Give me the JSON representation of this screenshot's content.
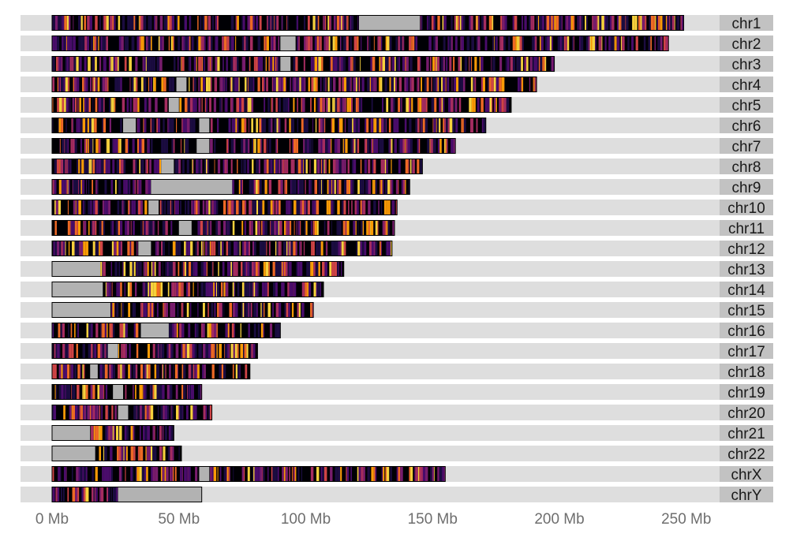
{
  "chart_data": {
    "type": "ideogram",
    "title": "",
    "xlabel": "",
    "ylabel": "",
    "x_unit": "Mb",
    "xlim": [
      -12,
      278
    ],
    "x_ticks": [
      {
        "value": 0,
        "label": "0 Mb"
      },
      {
        "value": 50,
        "label": "50 Mb"
      },
      {
        "value": 100,
        "label": "100 Mb"
      },
      {
        "value": 150,
        "label": "150 Mb"
      },
      {
        "value": 200,
        "label": "200 Mb"
      },
      {
        "value": 250,
        "label": "250 Mb"
      }
    ],
    "colors": {
      "panel_background": "#dedede",
      "strip_background": "#c2c2c2",
      "gap_region": "#b2b2b2",
      "bar_outline": "#000000",
      "band_palette": [
        "#000004",
        "#1b0c41",
        "#4a0c6b",
        "#781c6d",
        "#a52c60",
        "#cf4446",
        "#ed6925",
        "#fb9b06",
        "#f7d13d"
      ]
    },
    "chromosomes": [
      {
        "name": "chr1",
        "length": 249,
        "gaps": [
          [
            121,
            145
          ]
        ]
      },
      {
        "name": "chr2",
        "length": 243,
        "gaps": [
          [
            90,
            96
          ]
        ]
      },
      {
        "name": "chr3",
        "length": 198,
        "gaps": [
          [
            90,
            94
          ]
        ]
      },
      {
        "name": "chr4",
        "length": 191,
        "gaps": [
          [
            49,
            53
          ]
        ]
      },
      {
        "name": "chr5",
        "length": 181,
        "gaps": [
          [
            46,
            50
          ]
        ]
      },
      {
        "name": "chr6",
        "length": 171,
        "gaps": [
          [
            28,
            33
          ],
          [
            58,
            62
          ]
        ]
      },
      {
        "name": "chr7",
        "length": 159,
        "gaps": [
          [
            57,
            62
          ]
        ]
      },
      {
        "name": "chr8",
        "length": 146,
        "gaps": [
          [
            43,
            48
          ]
        ]
      },
      {
        "name": "chr9",
        "length": 141,
        "gaps": [
          [
            39,
            71
          ]
        ]
      },
      {
        "name": "chr10",
        "length": 136,
        "gaps": [
          [
            38,
            42
          ]
        ]
      },
      {
        "name": "chr11",
        "length": 135,
        "gaps": [
          [
            50,
            55
          ]
        ]
      },
      {
        "name": "chr12",
        "length": 134,
        "gaps": [
          [
            34,
            39
          ]
        ]
      },
      {
        "name": "chr13",
        "length": 115,
        "gaps": [
          [
            0,
            19
          ]
        ]
      },
      {
        "name": "chr14",
        "length": 107,
        "gaps": [
          [
            0,
            20
          ]
        ]
      },
      {
        "name": "chr15",
        "length": 103,
        "gaps": [
          [
            0,
            23
          ]
        ]
      },
      {
        "name": "chr16",
        "length": 90,
        "gaps": [
          [
            35,
            46
          ]
        ]
      },
      {
        "name": "chr17",
        "length": 81,
        "gaps": [
          [
            22,
            26
          ]
        ]
      },
      {
        "name": "chr18",
        "length": 78,
        "gaps": [
          [
            15,
            18
          ]
        ]
      },
      {
        "name": "chr19",
        "length": 59,
        "gaps": [
          [
            24,
            28
          ]
        ]
      },
      {
        "name": "chr20",
        "length": 63,
        "gaps": [
          [
            26,
            30
          ]
        ]
      },
      {
        "name": "chr21",
        "length": 48,
        "gaps": [
          [
            0,
            15
          ]
        ]
      },
      {
        "name": "chr22",
        "length": 51,
        "gaps": [
          [
            0,
            17
          ]
        ]
      },
      {
        "name": "chrX",
        "length": 155,
        "gaps": [
          [
            58,
            62
          ]
        ]
      },
      {
        "name": "chrY",
        "length": 59,
        "gaps": [
          [
            26,
            59
          ]
        ]
      }
    ]
  }
}
